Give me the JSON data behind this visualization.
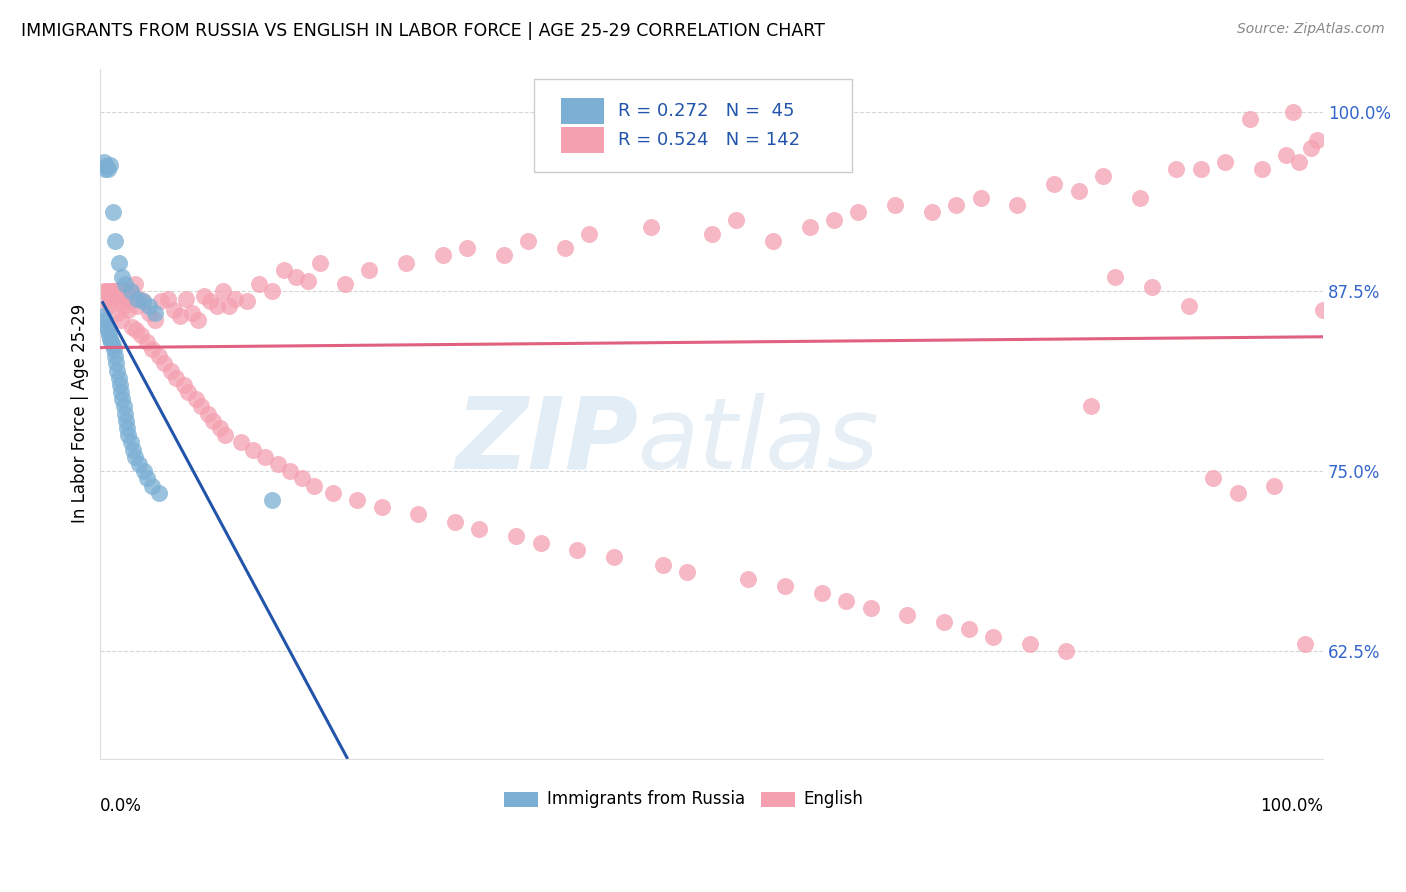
{
  "title": "IMMIGRANTS FROM RUSSIA VS ENGLISH IN LABOR FORCE | AGE 25-29 CORRELATION CHART",
  "source": "Source: ZipAtlas.com",
  "ylabel": "In Labor Force | Age 25-29",
  "legend_label1": "Immigrants from Russia",
  "legend_label2": "English",
  "r1": 0.272,
  "n1": 45,
  "r2": 0.524,
  "n2": 142,
  "blue_color": "#7BAFD4",
  "pink_color": "#F4A0B0",
  "blue_line_color": "#2255AA",
  "pink_line_color": "#E06080",
  "yticks": [
    62.5,
    75.0,
    87.5,
    100.0
  ],
  "ytick_labels": [
    "62.5%",
    "75.0%",
    "87.5%",
    "100.0%"
  ],
  "xlim": [
    0,
    100
  ],
  "ylim": [
    55,
    103
  ],
  "blue_scatter_x": [
    0.3,
    0.4,
    0.5,
    0.6,
    0.8,
    1.0,
    1.2,
    1.5,
    1.8,
    2.0,
    2.5,
    3.0,
    3.5,
    4.0,
    4.5,
    0.2,
    0.4,
    0.5,
    0.6,
    0.7,
    0.8,
    0.9,
    1.0,
    1.1,
    1.2,
    1.3,
    1.4,
    1.5,
    1.6,
    1.7,
    1.8,
    1.9,
    2.0,
    2.1,
    2.2,
    2.3,
    2.5,
    2.7,
    2.8,
    3.2,
    3.6,
    3.8,
    4.2,
    4.8,
    14.0
  ],
  "blue_scatter_y": [
    96.5,
    96.0,
    96.2,
    96.0,
    96.3,
    93.0,
    91.0,
    89.5,
    88.5,
    88.0,
    87.5,
    87.0,
    86.8,
    86.5,
    86.0,
    85.8,
    85.5,
    85.0,
    84.8,
    84.5,
    84.2,
    84.0,
    83.8,
    83.5,
    83.0,
    82.5,
    82.0,
    81.5,
    81.0,
    80.5,
    80.0,
    79.5,
    79.0,
    78.5,
    78.0,
    77.5,
    77.0,
    76.5,
    76.0,
    75.5,
    75.0,
    74.5,
    74.0,
    73.5,
    73.0
  ],
  "pink_scatter_x": [
    0.3,
    0.5,
    0.6,
    0.8,
    1.0,
    1.0,
    1.2,
    1.3,
    1.5,
    1.5,
    1.6,
    1.8,
    2.0,
    2.0,
    2.2,
    2.5,
    2.8,
    3.0,
    3.2,
    3.5,
    4.0,
    4.5,
    5.0,
    5.5,
    6.0,
    6.5,
    7.0,
    7.5,
    8.0,
    8.5,
    9.0,
    9.5,
    10.0,
    10.5,
    11.0,
    12.0,
    13.0,
    14.0,
    15.0,
    16.0,
    17.0,
    18.0,
    20.0,
    22.0,
    25.0,
    28.0,
    30.0,
    33.0,
    35.0,
    38.0,
    40.0,
    45.0,
    50.0,
    52.0,
    55.0,
    58.0,
    60.0,
    62.0,
    65.0,
    68.0,
    70.0,
    72.0,
    75.0,
    78.0,
    80.0,
    82.0,
    85.0,
    88.0,
    90.0,
    92.0,
    95.0,
    97.0,
    98.0,
    99.0,
    99.5,
    0.4,
    0.7,
    0.9,
    1.1,
    1.4,
    1.7,
    1.9,
    2.1,
    2.3,
    2.6,
    2.9,
    3.3,
    3.8,
    4.2,
    4.8,
    5.2,
    5.8,
    6.2,
    6.8,
    7.2,
    7.8,
    8.2,
    8.8,
    9.2,
    9.8,
    10.2,
    11.5,
    12.5,
    13.5,
    14.5,
    15.5,
    16.5,
    17.5,
    19.0,
    21.0,
    23.0,
    26.0,
    29.0,
    31.0,
    34.0,
    36.0,
    39.0,
    42.0,
    46.0,
    48.0,
    53.0,
    56.0,
    59.0,
    61.0,
    63.0,
    66.0,
    69.0,
    71.0,
    73.0,
    76.0,
    79.0,
    81.0,
    83.0,
    86.0,
    89.0,
    91.0,
    93.0,
    96.0,
    100.0,
    98.5,
    97.5,
    94.0
  ],
  "pink_scatter_y": [
    87.5,
    87.5,
    87.5,
    87.5,
    87.5,
    87.3,
    87.5,
    87.5,
    87.5,
    87.2,
    87.5,
    87.5,
    87.5,
    87.0,
    87.5,
    87.5,
    88.0,
    86.5,
    87.0,
    86.8,
    86.0,
    85.5,
    86.8,
    87.0,
    86.2,
    85.8,
    87.0,
    86.0,
    85.5,
    87.2,
    86.8,
    86.5,
    87.5,
    86.5,
    87.0,
    86.8,
    88.0,
    87.5,
    89.0,
    88.5,
    88.2,
    89.5,
    88.0,
    89.0,
    89.5,
    90.0,
    90.5,
    90.0,
    91.0,
    90.5,
    91.5,
    92.0,
    91.5,
    92.5,
    91.0,
    92.0,
    92.5,
    93.0,
    93.5,
    93.0,
    93.5,
    94.0,
    93.5,
    95.0,
    94.5,
    95.5,
    94.0,
    96.0,
    96.0,
    96.5,
    96.0,
    97.0,
    96.5,
    97.5,
    98.0,
    87.0,
    86.5,
    86.8,
    87.2,
    86.0,
    85.5,
    86.5,
    87.0,
    86.2,
    85.0,
    84.8,
    84.5,
    84.0,
    83.5,
    83.0,
    82.5,
    82.0,
    81.5,
    81.0,
    80.5,
    80.0,
    79.5,
    79.0,
    78.5,
    78.0,
    77.5,
    77.0,
    76.5,
    76.0,
    75.5,
    75.0,
    74.5,
    74.0,
    73.5,
    73.0,
    72.5,
    72.0,
    71.5,
    71.0,
    70.5,
    70.0,
    69.5,
    69.0,
    68.5,
    68.0,
    67.5,
    67.0,
    66.5,
    66.0,
    65.5,
    65.0,
    64.5,
    64.0,
    63.5,
    63.0,
    62.5,
    79.5,
    88.5,
    87.8,
    86.5,
    74.5,
    73.5,
    74.0,
    86.2,
    63.0,
    100.0,
    99.5
  ]
}
